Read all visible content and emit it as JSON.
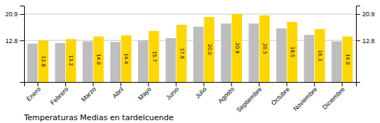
{
  "chart_data": {
    "type": "bar",
    "title": "Temperaturas Medias en tardelcuende",
    "categories": [
      "Enero",
      "Febrero",
      "Marzo",
      "Abril",
      "Mayo",
      "Junio",
      "Julio",
      "Agosto",
      "Septiembre",
      "Octubre",
      "Noviembre",
      "Diciembre"
    ],
    "series": [
      {
        "color": "#BEBEBE",
        "values": [
          11.8,
          12.0,
          12.5,
          12.3,
          12.8,
          13.5,
          17.0,
          18.0,
          18.0,
          16.5,
          14.5,
          12.5
        ]
      },
      {
        "color": "#FFD700",
        "values": [
          12.8,
          13.2,
          14.0,
          14.4,
          15.7,
          17.6,
          20.0,
          20.9,
          20.5,
          18.5,
          16.3,
          14.0
        ],
        "data_labels": true,
        "value_labels": [
          "12.8",
          "13.2",
          "14.0",
          "14.4",
          "15.7",
          "17.6",
          "20.0",
          "20.9",
          "20.5",
          "18.5",
          "16.3",
          "14.0"
        ]
      }
    ],
    "ylim": [
      0.0,
      23.5
    ],
    "yticks": [
      12.8,
      20.9
    ],
    "y2lim": [
      0.0,
      23.5
    ],
    "y2ticks": [
      12.8,
      20.9
    ],
    "grid": true
  }
}
